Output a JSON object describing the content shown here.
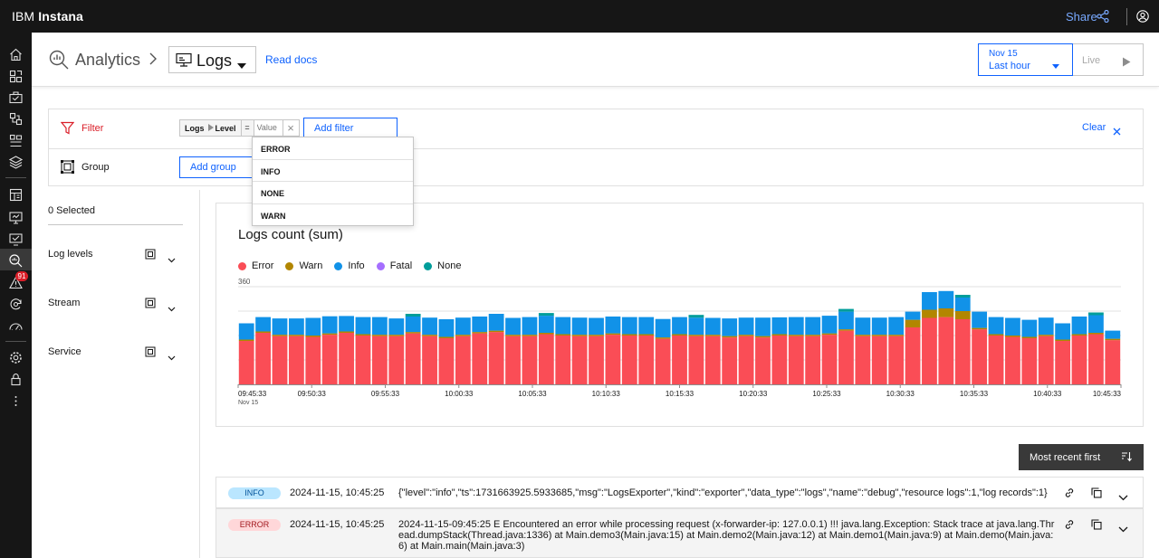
{
  "topbar": {
    "brand_prefix": "IBM",
    "brand_name": "Instana",
    "share_label": "Share"
  },
  "nav": {
    "alert_count": "91",
    "icons": [
      "home-icon",
      "application-icon",
      "services-icon",
      "infrastructure-icon",
      "platforms-icon",
      "stack-icon",
      "dashboard-icon",
      "websites-icon",
      "mobile-icon",
      "analytics-icon",
      "events-icon",
      "automation-icon",
      "synthetic-icon",
      "settings-icon",
      "lock-icon",
      "more-icon"
    ]
  },
  "header": {
    "title": "Analytics",
    "view": "Logs",
    "read_docs": "Read docs",
    "date": "Nov 15",
    "range": "Last hour",
    "live": "Live"
  },
  "filter": {
    "filter_label": "Filter",
    "chip_source": "Logs",
    "chip_field": "Level",
    "chip_operator": "=",
    "chip_value_placeholder": "Value",
    "add_filter": "Add filter",
    "group_label": "Group",
    "add_group": "Add group",
    "clear": "Clear",
    "options": [
      "ERROR",
      "INFO",
      "NONE",
      "WARN"
    ]
  },
  "sidebar": {
    "selected": "0 Selected",
    "groups": [
      "Log levels",
      "Stream",
      "Service"
    ]
  },
  "chart_data": {
    "type": "bar",
    "stacked": true,
    "title": "Logs count (sum)",
    "ylim": [
      0,
      360
    ],
    "y_ticks": [
      360
    ],
    "grid": true,
    "legend_position": "top-left",
    "x_ticks": [
      "09:45:33",
      "09:50:33",
      "09:55:33",
      "10:00:33",
      "10:05:33",
      "10:10:33",
      "10:15:33",
      "10:20:33",
      "10:25:33",
      "10:30:33",
      "10:35:33",
      "10:40:33",
      "10:45:33"
    ],
    "x_sublabel": "Nov 15",
    "series": [
      {
        "name": "Error",
        "color": "#fa4d56",
        "values": [
          160,
          190,
          178,
          178,
          175,
          183,
          190,
          180,
          178,
          178,
          188,
          178,
          170,
          178,
          188,
          193,
          178,
          178,
          185,
          180,
          178,
          178,
          183,
          180,
          180,
          168,
          180,
          178,
          178,
          173,
          178,
          173,
          180,
          178,
          178,
          183,
          198,
          178,
          178,
          178,
          210,
          245,
          248,
          240,
          203,
          180,
          175,
          170,
          178,
          160,
          180,
          185,
          163
        ]
      },
      {
        "name": "Warn",
        "color": "#b28600",
        "values": [
          5,
          5,
          5,
          5,
          5,
          5,
          5,
          5,
          5,
          5,
          5,
          5,
          5,
          5,
          5,
          5,
          5,
          5,
          5,
          5,
          5,
          5,
          5,
          5,
          5,
          5,
          5,
          5,
          5,
          5,
          5,
          5,
          5,
          5,
          5,
          5,
          5,
          5,
          5,
          5,
          28,
          30,
          32,
          30,
          5,
          5,
          5,
          5,
          5,
          5,
          5,
          5,
          5
        ]
      },
      {
        "name": "Info",
        "color": "#1192e8",
        "values": [
          60,
          53,
          60,
          60,
          65,
          63,
          57,
          63,
          65,
          60,
          57,
          63,
          65,
          63,
          57,
          62,
          62,
          65,
          63,
          63,
          63,
          62,
          62,
          63,
          63,
          68,
          63,
          63,
          62,
          65,
          63,
          68,
          62,
          65,
          65,
          65,
          65,
          63,
          63,
          65,
          30,
          65,
          64,
          50,
          60,
          63,
          65,
          63,
          63,
          60,
          65,
          65,
          30
        ]
      },
      {
        "name": "Fatal",
        "color": "#a56eff",
        "values": [
          0,
          0,
          0,
          0,
          0,
          0,
          0,
          0,
          0,
          0,
          0,
          0,
          0,
          0,
          0,
          0,
          0,
          0,
          0,
          0,
          0,
          0,
          0,
          0,
          0,
          0,
          0,
          0,
          0,
          0,
          0,
          0,
          0,
          0,
          0,
          0,
          0,
          0,
          0,
          0,
          0,
          0,
          0,
          0,
          0,
          0,
          0,
          0,
          0,
          0,
          0,
          0,
          0
        ]
      },
      {
        "name": "None",
        "color": "#009d9a",
        "values": [
          0,
          0,
          0,
          0,
          0,
          0,
          0,
          0,
          0,
          0,
          10,
          0,
          0,
          0,
          0,
          0,
          0,
          0,
          10,
          0,
          0,
          0,
          0,
          0,
          0,
          0,
          0,
          10,
          0,
          0,
          0,
          0,
          0,
          0,
          0,
          0,
          10,
          0,
          0,
          0,
          0,
          0,
          0,
          10,
          0,
          0,
          0,
          0,
          0,
          0,
          0,
          10,
          0
        ]
      }
    ]
  },
  "logs": {
    "sort_label": "Most recent first",
    "rows": [
      {
        "level": "INFO",
        "kind": "info",
        "time": "2024-11-15, 10:45:25",
        "message": "{\"level\":\"info\",\"ts\":1731663925.5933685,\"msg\":\"LogsExporter\",\"kind\":\"exporter\",\"data_type\":\"logs\",\"name\":\"debug\",\"resource logs\":1,\"log records\":1}"
      },
      {
        "level": "ERROR",
        "kind": "err",
        "time": "2024-11-15, 10:45:25",
        "message": "2024-11-15-09:45:25 E Encountered an error while processing request (x-forwarder-ip: 127.0.0.1) !!! java.lang.Exception: Stack trace at java.lang.Thread.dumpStack(Thread.java:1336) at Main.demo3(Main.java:15) at Main.demo2(Main.java:12) at Main.demo1(Main.java:9) at Main.demo(Main.java:6) at Main.main(Main.java:3)"
      }
    ]
  }
}
